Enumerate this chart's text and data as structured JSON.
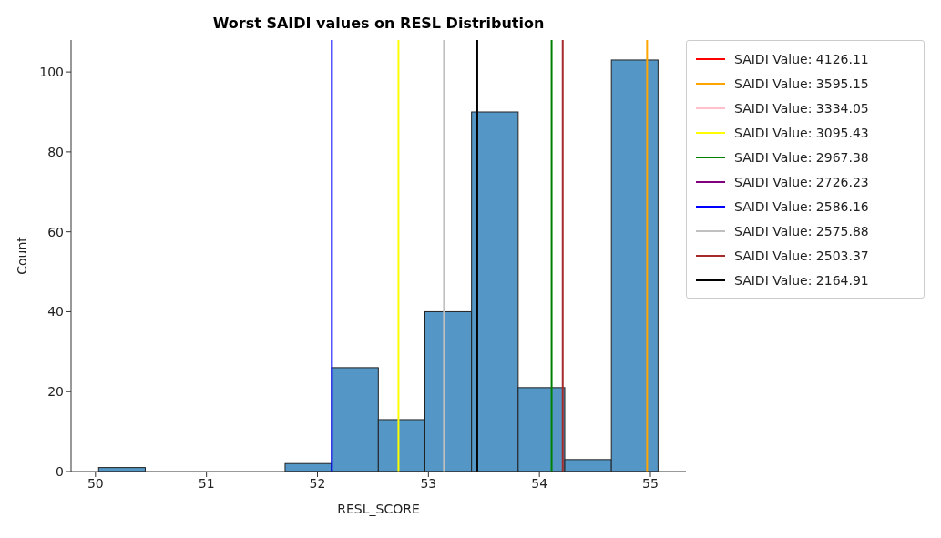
{
  "chart_data": {
    "type": "histogram",
    "title": "Worst SAIDI values on RESL Distribution",
    "xlabel": "RESL_SCORE",
    "ylabel": "Count",
    "xlim": [
      49.78,
      55.32
    ],
    "xticks": [
      50,
      51,
      52,
      53,
      54,
      55
    ],
    "ylim": [
      0,
      108
    ],
    "yticks": [
      0,
      20,
      40,
      60,
      80,
      100
    ],
    "grid": false,
    "legend": "top right",
    "series": [
      {
        "color": "#5497c6",
        "bins": [
          50.03,
          50.45,
          50.87,
          51.29,
          51.71,
          52.13,
          52.55,
          52.97,
          53.39,
          53.81,
          54.23,
          54.65,
          55.07
        ],
        "values": [
          1,
          0,
          0,
          0,
          2,
          26,
          13,
          40,
          90,
          21,
          3,
          103
        ]
      },
      {
        "type": "line",
        "name": "SAIDI Value: 4126.11",
        "color": "#ff0000",
        "x": [
          null,
          null
        ],
        "values": [
          null,
          null
        ]
      },
      {
        "type": "line",
        "name": "SAIDI Value: 3595.15",
        "color": "#ffa500",
        "x": [
          54.97,
          54.97
        ],
        "values": [
          0,
          108
        ]
      },
      {
        "type": "line",
        "name": "SAIDI Value: 3334.05",
        "color": "#ffc0cb",
        "x": [
          null,
          null
        ],
        "values": [
          null,
          null
        ]
      },
      {
        "type": "line",
        "name": "SAIDI Value: 3095.43",
        "color": "#ffff00",
        "x": [
          52.73,
          52.73
        ],
        "values": [
          0,
          108
        ]
      },
      {
        "type": "line",
        "name": "SAIDI Value: 2967.38",
        "color": "#008000",
        "x": [
          54.11,
          54.11
        ],
        "values": [
          0,
          108
        ]
      },
      {
        "type": "line",
        "name": "SAIDI Value: 2726.23",
        "color": "#800080",
        "x": [
          null,
          null
        ],
        "values": [
          null,
          null
        ]
      },
      {
        "type": "line",
        "name": "SAIDI Value: 2586.16",
        "color": "#0000ff",
        "x": [
          52.13,
          52.13
        ],
        "values": [
          0,
          108
        ]
      },
      {
        "type": "line",
        "name": "SAIDI Value: 2575.88",
        "color": "#c0c0c0",
        "x": [
          53.14,
          53.14
        ],
        "values": [
          0,
          108
        ]
      },
      {
        "type": "line",
        "name": "SAIDI Value: 2503.37",
        "color": "#a52a2a",
        "x": [
          54.21,
          54.21
        ],
        "values": [
          0,
          108
        ]
      },
      {
        "type": "line",
        "name": "SAIDI Value: 2164.91",
        "color": "#000000",
        "x": [
          53.44,
          53.44
        ],
        "values": [
          0,
          108
        ]
      }
    ]
  }
}
